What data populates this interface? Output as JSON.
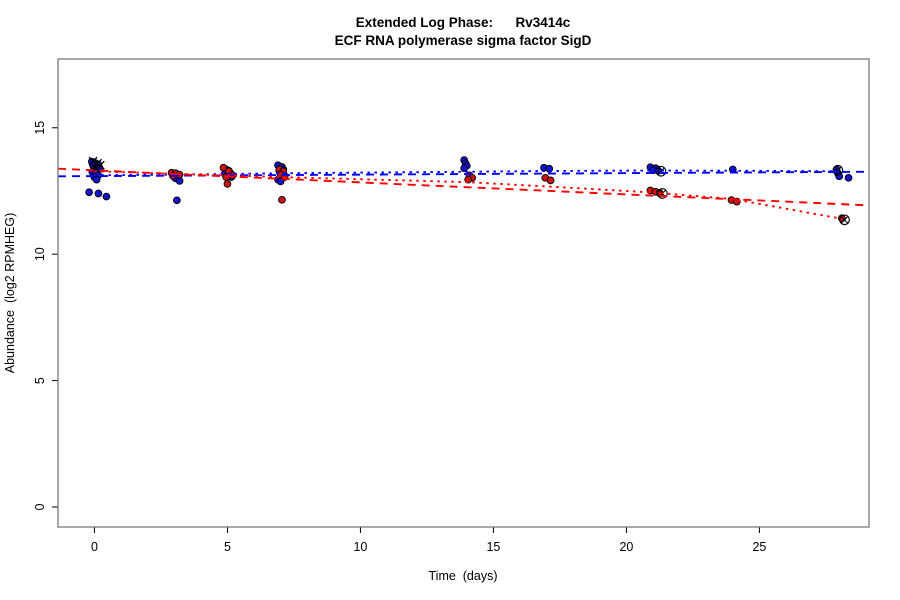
{
  "chart_data": {
    "type": "scatter",
    "title": "Extended Log Phase:      Rv3414c",
    "subtitle": "ECF RNA polymerase sigma factor SigD",
    "xlabel": "Time  (days)",
    "ylabel": "Abundance  (log2 RPMHEG)",
    "xlim": [
      -1.37,
      29.12
    ],
    "ylim": [
      -0.79,
      17.72
    ],
    "x_ticks": [
      0,
      5,
      10,
      15,
      20,
      25
    ],
    "y_ticks": [
      0,
      5,
      10,
      15
    ],
    "grid": false,
    "legend": "none",
    "box_color": "#6e6e6e",
    "series": [
      {
        "name": "blue-replicates",
        "marker": "circle",
        "fill": "#1414cc",
        "stroke": "#000000",
        "points": [
          [
            -0.1,
            13.66
          ],
          [
            0.05,
            13.6
          ],
          [
            0.15,
            13.55
          ],
          [
            -0.05,
            13.5
          ],
          [
            0.1,
            13.45
          ],
          [
            0.2,
            13.4
          ],
          [
            0.0,
            13.36
          ],
          [
            0.1,
            13.3
          ],
          [
            -0.08,
            13.25
          ],
          [
            0.05,
            13.2
          ],
          [
            0.15,
            13.12
          ],
          [
            0.0,
            13.04
          ],
          [
            0.08,
            12.95
          ],
          [
            -0.2,
            12.45
          ],
          [
            0.15,
            12.4
          ],
          [
            0.45,
            12.28
          ],
          [
            3.05,
            13.0
          ],
          [
            3.2,
            12.9
          ],
          [
            3.1,
            12.13
          ],
          [
            4.95,
            13.35
          ],
          [
            5.05,
            13.3
          ],
          [
            5.1,
            13.22
          ],
          [
            4.9,
            13.18
          ],
          [
            5.0,
            13.1
          ],
          [
            5.15,
            13.05
          ],
          [
            6.9,
            13.52
          ],
          [
            7.05,
            13.45
          ],
          [
            7.1,
            13.35
          ],
          [
            6.95,
            13.28
          ],
          [
            7.0,
            13.18
          ],
          [
            7.15,
            13.1
          ],
          [
            6.9,
            12.95
          ],
          [
            7.0,
            12.88
          ],
          [
            13.9,
            13.72
          ],
          [
            13.95,
            13.6
          ],
          [
            14.0,
            13.5
          ],
          [
            13.9,
            13.4
          ],
          [
            16.9,
            13.42
          ],
          [
            17.1,
            13.38
          ],
          [
            20.9,
            13.44
          ],
          [
            21.1,
            13.4
          ],
          [
            21.0,
            13.32
          ],
          [
            21.2,
            13.3
          ],
          [
            24.0,
            13.35
          ],
          [
            27.9,
            13.35
          ],
          [
            27.95,
            13.2
          ],
          [
            28.0,
            13.08
          ],
          [
            28.35,
            13.02
          ]
        ]
      },
      {
        "name": "red-replicates",
        "marker": "circle",
        "fill": "#cc1414",
        "stroke": "#000000",
        "points": [
          [
            2.9,
            13.22
          ],
          [
            3.05,
            13.2
          ],
          [
            3.2,
            13.15
          ],
          [
            2.95,
            13.1
          ],
          [
            4.85,
            13.42
          ],
          [
            5.05,
            13.28
          ],
          [
            5.2,
            13.12
          ],
          [
            4.95,
            13.05
          ],
          [
            5.0,
            12.78
          ],
          [
            6.95,
            13.35
          ],
          [
            7.1,
            13.28
          ],
          [
            7.0,
            13.15
          ],
          [
            7.15,
            13.05
          ],
          [
            7.05,
            12.15
          ],
          [
            14.1,
            13.12
          ],
          [
            14.2,
            13.02
          ],
          [
            14.05,
            12.95
          ],
          [
            16.95,
            13.02
          ],
          [
            17.15,
            12.92
          ],
          [
            20.9,
            12.52
          ],
          [
            21.1,
            12.47
          ],
          [
            21.25,
            12.42
          ],
          [
            23.95,
            12.14
          ],
          [
            24.15,
            12.08
          ],
          [
            28.1,
            11.42
          ]
        ]
      },
      {
        "name": "flagged-points-x",
        "marker": "x",
        "stroke": "#000000",
        "points": [
          [
            -0.05,
            13.68
          ],
          [
            0.12,
            13.6
          ],
          [
            0.22,
            13.52
          ],
          [
            0.0,
            13.45
          ]
        ]
      },
      {
        "name": "outlier-circle-x",
        "marker": "circle-x",
        "stroke": "#000000",
        "points": [
          [
            21.3,
            13.28
          ],
          [
            21.35,
            12.4
          ],
          [
            27.95,
            13.32
          ],
          [
            28.2,
            11.36
          ]
        ]
      }
    ],
    "fit_lines": [
      {
        "name": "blue-linear-fit",
        "color": "#0000ff",
        "dash": "dashed",
        "points": [
          [
            -1.37,
            13.08
          ],
          [
            29.12,
            13.26
          ]
        ]
      },
      {
        "name": "blue-smooth-fit",
        "color": "#0000ff",
        "dash": "dotted",
        "points": [
          [
            0,
            13.12
          ],
          [
            3,
            13.15
          ],
          [
            5,
            13.17
          ],
          [
            7,
            13.2
          ],
          [
            14,
            13.26
          ],
          [
            17,
            13.29
          ],
          [
            21,
            13.31
          ],
          [
            24,
            13.3
          ],
          [
            28,
            13.28
          ]
        ]
      },
      {
        "name": "red-linear-fit",
        "color": "#ff0000",
        "dash": "dashed",
        "points": [
          [
            -1.37,
            13.38
          ],
          [
            29.12,
            11.93
          ]
        ]
      },
      {
        "name": "red-smooth-fit",
        "color": "#ff0000",
        "dash": "dotted",
        "points": [
          [
            0,
            13.28
          ],
          [
            3,
            13.18
          ],
          [
            5,
            13.12
          ],
          [
            7,
            13.05
          ],
          [
            14,
            12.85
          ],
          [
            17,
            12.68
          ],
          [
            21,
            12.44
          ],
          [
            24,
            12.18
          ],
          [
            28,
            11.42
          ]
        ]
      }
    ]
  }
}
